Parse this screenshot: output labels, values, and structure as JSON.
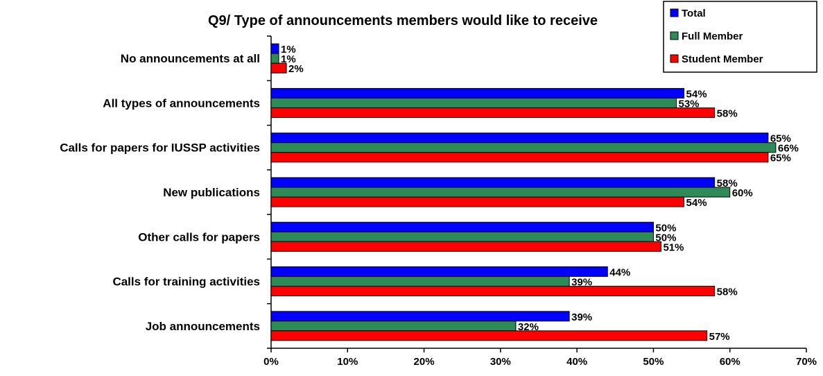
{
  "chart_data": {
    "type": "bar",
    "orientation": "horizontal",
    "title": "Q9/ Type of announcements members would like to receive",
    "categories": [
      "No announcements at all",
      "All types of announcements",
      "Calls for papers for IUSSP activities",
      "New publications",
      "Other calls for papers",
      "Calls for training activities",
      "Job announcements"
    ],
    "series": [
      {
        "name": "Total",
        "color": "#0000ff",
        "values": [
          1,
          54,
          65,
          58,
          50,
          44,
          39
        ]
      },
      {
        "name": "Full Member",
        "color": "#2e8b57",
        "values": [
          1,
          53,
          66,
          60,
          50,
          39,
          32
        ]
      },
      {
        "name": "Student Member",
        "color": "#ff0000",
        "values": [
          2,
          58,
          65,
          54,
          51,
          58,
          57
        ]
      }
    ],
    "value_suffix": "%",
    "xlim": [
      0,
      70
    ],
    "xticks": [
      "0%",
      "10%",
      "20%",
      "30%",
      "40%",
      "50%",
      "60%",
      "70%"
    ],
    "xlabel": "",
    "ylabel": "",
    "grid": false,
    "legend": "top-right"
  }
}
